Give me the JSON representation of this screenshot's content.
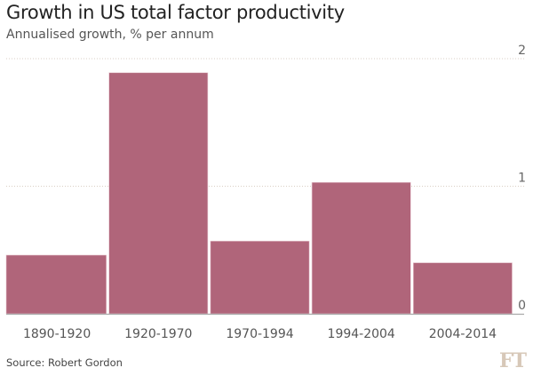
{
  "header": {
    "title": "Growth in US total factor productivity",
    "subtitle": "Annualised growth, % per annum"
  },
  "footer": {
    "source": "Source: Robert Gordon",
    "logo": "FT"
  },
  "colors": {
    "bar": "#b0657a",
    "grid": "#d9cfc4",
    "axis": "#aaaaaa"
  },
  "chart_data": {
    "type": "bar",
    "title": "Growth in US total factor productivity",
    "subtitle": "Annualised growth, % per annum",
    "xlabel": "",
    "ylabel": "Annualised growth, % per annum",
    "categories": [
      "1890-1920",
      "1920-1970",
      "1970-1994",
      "1994-2004",
      "2004-2014"
    ],
    "values": [
      0.46,
      1.89,
      0.57,
      1.03,
      0.4
    ],
    "ylim": [
      0,
      2
    ],
    "yticks": [
      0,
      1,
      2
    ],
    "ytick_labels": [
      "0",
      "1",
      "2"
    ],
    "grid": true,
    "ytick_position": "right",
    "legend": "none",
    "source": "Source: Robert Gordon"
  }
}
